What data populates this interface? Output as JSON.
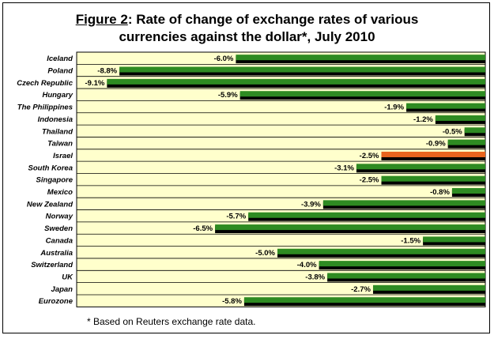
{
  "title": {
    "prefix": "Figure 2",
    "line1_rest": ": Rate of change of exchange rates of various",
    "line2": "currencies against the dollar*, July 2010"
  },
  "footnote": "* Based on Reuters exchange rate data.",
  "colors": {
    "plot_bg": "#ffffcc",
    "bar_default": "#2e8b22",
    "bar_highlight": "#e8641e",
    "bar_shadow": "#000000"
  },
  "chart_data": {
    "type": "bar",
    "orientation": "horizontal",
    "categories": [
      "Iceland",
      "Poland",
      "Czech Republic",
      "Hungary",
      "The Philippines",
      "Indonesia",
      "Thailand",
      "Taiwan",
      "Israel",
      "South Korea",
      "Singapore",
      "Mexico",
      "New Zealand",
      "Norway",
      "Sweden",
      "Canada",
      "Australia",
      "Switzerland",
      "UK",
      "Japan",
      "Eurozone"
    ],
    "values": [
      -6.0,
      -8.8,
      -9.1,
      -5.9,
      -1.9,
      -1.2,
      -0.5,
      -0.9,
      -2.5,
      -3.1,
      -2.5,
      -0.8,
      -3.9,
      -5.7,
      -6.5,
      -1.5,
      -5.0,
      -4.0,
      -3.8,
      -2.7,
      -5.8
    ],
    "value_labels": [
      "-6.0%",
      "-8.8%",
      "-9.1%",
      "-5.9%",
      "-1.9%",
      "-1.2%",
      "-0.5%",
      "-0.9%",
      "-2.5%",
      "-3.1%",
      "-2.5%",
      "-0.8%",
      "-3.9%",
      "-5.7%",
      "-6.5%",
      "-1.5%",
      "-5.0%",
      "-4.0%",
      "-3.8%",
      "-2.7%",
      "-5.8%"
    ],
    "highlight": "Israel",
    "xlim": [
      -10,
      0
    ],
    "grid": "horizontal row bands",
    "legend": "none"
  }
}
